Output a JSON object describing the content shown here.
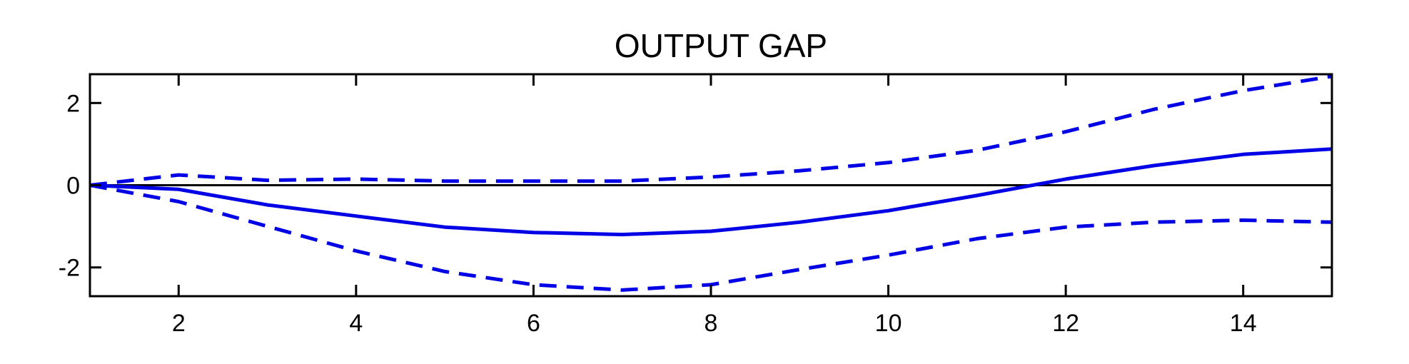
{
  "chart_data": {
    "type": "line",
    "title": "OUTPUT GAP",
    "xlabel": "",
    "ylabel": "",
    "xlim": [
      1,
      15
    ],
    "ylim": [
      -2.7,
      2.7
    ],
    "xticks": [
      2,
      4,
      6,
      8,
      10,
      12,
      14
    ],
    "yticks": [
      -2,
      0,
      2
    ],
    "grid": false,
    "legend": "none",
    "zero_line": true,
    "series_color": "#0000e6",
    "series": [
      {
        "style": "solid",
        "x": [
          1,
          2,
          3,
          4,
          5,
          6,
          7,
          8,
          9,
          10,
          11,
          12,
          13,
          14,
          15
        ],
        "values": [
          0,
          -0.1,
          -0.48,
          -0.75,
          -1.02,
          -1.15,
          -1.2,
          -1.12,
          -0.9,
          -0.62,
          -0.25,
          0.15,
          0.48,
          0.75,
          0.88
        ]
      },
      {
        "style": "dashed",
        "x": [
          1,
          2,
          3,
          4,
          5,
          6,
          7,
          8,
          9,
          10,
          11,
          12,
          13,
          14,
          15
        ],
        "values": [
          0,
          0.25,
          0.12,
          0.15,
          0.1,
          0.1,
          0.1,
          0.2,
          0.35,
          0.55,
          0.85,
          1.3,
          1.85,
          2.3,
          2.65
        ]
      },
      {
        "style": "dashed",
        "x": [
          1,
          2,
          3,
          4,
          5,
          6,
          7,
          8,
          9,
          10,
          11,
          12,
          13,
          14,
          15
        ],
        "values": [
          0,
          -0.4,
          -1.0,
          -1.6,
          -2.1,
          -2.42,
          -2.55,
          -2.42,
          -2.05,
          -1.7,
          -1.3,
          -1.02,
          -0.9,
          -0.85,
          -0.9
        ]
      }
    ]
  }
}
